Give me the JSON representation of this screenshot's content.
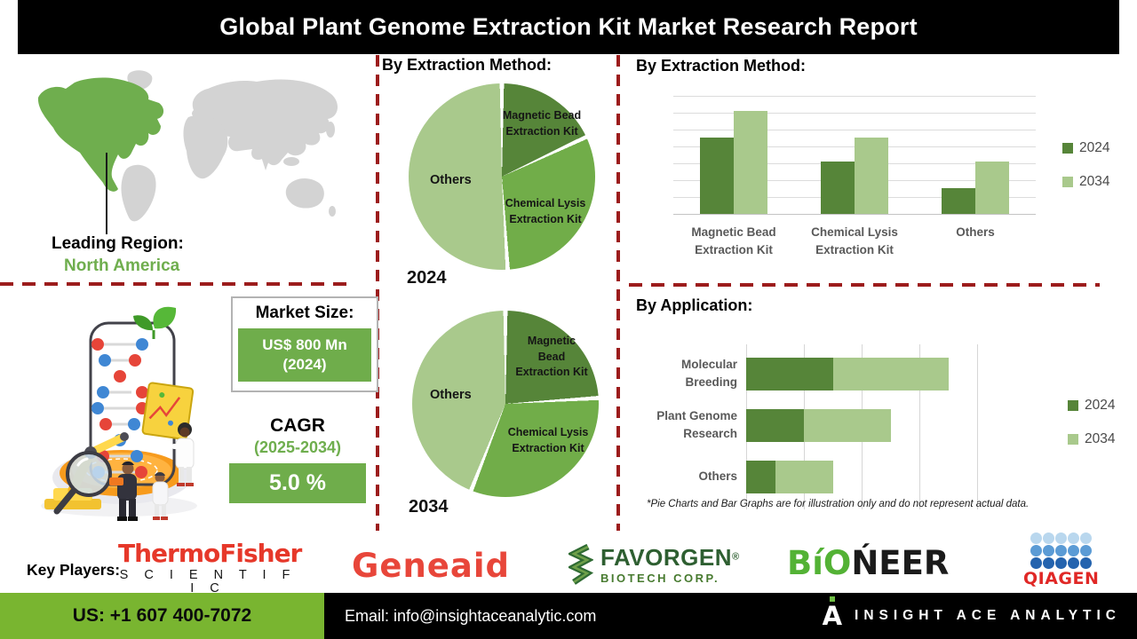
{
  "header": {
    "title": "Global Plant Genome Extraction Kit Market Research Report"
  },
  "leading_region": {
    "label": "Leading Region:",
    "value": "North America"
  },
  "market_size": {
    "label": "Market Size:",
    "value": "US$ 800 Mn",
    "year": "(2024)"
  },
  "cagr": {
    "label": "CAGR",
    "period": "(2025-2034)",
    "value": "5.0 %"
  },
  "disclaimer": "*Pie Charts and Bar Graphs are for illustration only and do not represent actual data.",
  "colors": {
    "series_2024_dark_green": "#568539",
    "series_2034_light_green": "#a9c98c",
    "pie_mid_green": "#71ad49",
    "accent_green": "#6fae4e",
    "value_box_green": "#6fad4b",
    "footer_green": "#79b530",
    "dashed_red": "#9c1c1c",
    "map_region_green": "#6fae4e",
    "map_gray": "#d3d3d3"
  },
  "chart_data": [
    {
      "type": "pie",
      "title": "By Extraction Method:",
      "year_label": "2024",
      "labels": [
        "Magnetic Bead\nExtraction Kit",
        "Others",
        "Chemical Lysis\nExtraction Kit"
      ],
      "segments": [
        {
          "name": "Magnetic Bead Extraction Kit",
          "value": 18,
          "color": "#568539"
        },
        {
          "name": "Chemical Lysis Extraction Kit",
          "value": 31,
          "color": "#71ad49"
        },
        {
          "name": "Others",
          "value": 51,
          "color": "#a9c98c"
        }
      ],
      "note": "illustrative proportions read from image"
    },
    {
      "type": "pie",
      "title": "By Extraction Method:",
      "year_label": "2034",
      "labels": [
        "Magnetic\nBead\nExtraction Kit",
        "Others",
        "Chemical Lysis\nExtraction Kit"
      ],
      "segments": [
        {
          "name": "Magnetic Bead Extraction Kit",
          "value": 24,
          "color": "#568539"
        },
        {
          "name": "Chemical Lysis Extraction Kit",
          "value": 32,
          "color": "#71ad49"
        },
        {
          "name": "Others",
          "value": 44,
          "color": "#a9c98c"
        }
      ],
      "note": "illustrative proportions read from image"
    },
    {
      "type": "bar",
      "title": "By Extraction Method:",
      "categories": [
        "Magnetic Bead\nExtraction Kit",
        "Chemical Lysis\nExtraction Kit",
        "Others"
      ],
      "series": [
        {
          "name": "2024",
          "color": "#568539",
          "values": [
            65,
            44,
            22
          ]
        },
        {
          "name": "2034",
          "color": "#a9c98c",
          "values": [
            87,
            65,
            44
          ]
        }
      ],
      "ylim": [
        0,
        100
      ],
      "grid": "horizontal",
      "legend_position": "right"
    },
    {
      "type": "bar-horizontal-stacked",
      "title": "By Application:",
      "categories": [
        "Molecular\nBreeding",
        "Plant Genome\nResearch",
        "Others"
      ],
      "series": [
        {
          "name": "2024",
          "color": "#568539",
          "values": [
            1.5,
            1.0,
            0.5
          ]
        },
        {
          "name": "2034",
          "color": "#a9c98c",
          "values": [
            2.0,
            1.5,
            1.0
          ]
        }
      ],
      "xlim": [
        0,
        4.4
      ],
      "grid": "vertical",
      "legend_position": "right"
    }
  ],
  "key_players": {
    "label": "Key Players:",
    "thermo_fisher": {
      "line1": "ThermoFisher",
      "line2": "S C I E N T I F I C"
    },
    "geneaid": {
      "text": "Geneaid"
    },
    "favorgen": {
      "name": "FAVORGEN",
      "reg": "®",
      "sub": "BIOTECH CORP."
    },
    "bioneer": {
      "green": "BíO",
      "black": "ŃEER"
    },
    "qiagen": {
      "text": "QIAGEN"
    }
  },
  "footer": {
    "phone": "US: +1 607 400-7072",
    "email": "Email: info@insightaceanalytic.com",
    "brand_initial": "A",
    "brand": "INSIGHT ACE ANALYTIC"
  }
}
